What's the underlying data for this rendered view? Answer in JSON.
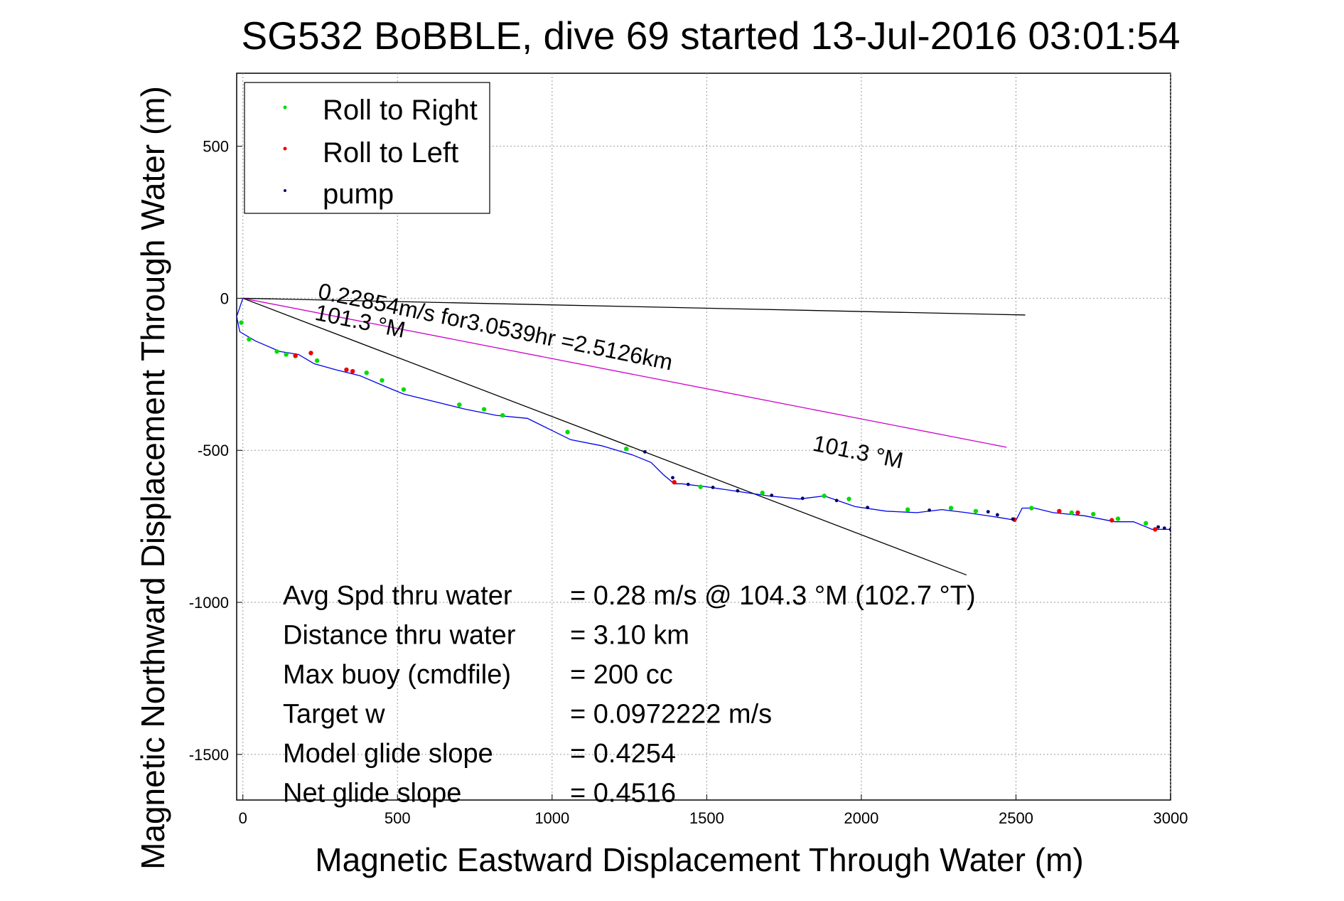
{
  "chart_data": {
    "type": "line",
    "title": "SG532 BoBBLE, dive 69 started 13-Jul-2016 03:01:54",
    "xlabel": "Magnetic Eastward Displacement Through Water (m)",
    "ylabel": "Magnetic Northward Displacement Through Water (m)",
    "xlim": [
      -20,
      3000
    ],
    "ylim": [
      -1650,
      740
    ],
    "xticks": [
      0,
      500,
      1000,
      1500,
      2000,
      2500,
      3000
    ],
    "yticks": [
      500,
      0,
      -500,
      -1000,
      -1500
    ],
    "xtick_labels": [
      "0",
      "500",
      "1000",
      "1500",
      "2000",
      "2500",
      "3000"
    ],
    "ytick_labels": [
      "500",
      "0",
      "-500",
      "-1000",
      "-1500"
    ],
    "grid": true,
    "legend_position": "top-left",
    "legend": [
      {
        "label": "Roll to Right",
        "color": "#00dd00"
      },
      {
        "label": "Roll to Left",
        "color": "#ee0000"
      },
      {
        "label": "pump",
        "color": "#000066"
      }
    ],
    "series": [
      {
        "color": "#0000ee",
        "x": [
          0,
          -20,
          -10,
          40,
          120,
          180,
          230,
          300,
          380,
          460,
          520,
          620,
          720,
          820,
          920,
          1000,
          1060,
          1160,
          1260,
          1320,
          1360,
          1395,
          1420,
          1500,
          1600,
          1700,
          1800,
          1880,
          1980,
          2080,
          2180,
          2260,
          2340,
          2440,
          2500,
          2520,
          2560,
          2620,
          2720,
          2820,
          2880,
          2940,
          3000
        ],
        "y": [
          0,
          -60,
          -110,
          -140,
          -175,
          -185,
          -215,
          -235,
          -255,
          -290,
          -315,
          -340,
          -365,
          -385,
          -395,
          -435,
          -465,
          -485,
          -515,
          -540,
          -580,
          -610,
          -610,
          -620,
          -635,
          -650,
          -660,
          -650,
          -685,
          -700,
          -705,
          -695,
          -705,
          -720,
          -730,
          -690,
          -690,
          -705,
          -715,
          -735,
          -735,
          -760,
          -760
        ]
      }
    ],
    "lines": [
      {
        "color": "#000000",
        "x": [
          0,
          2530
        ],
        "y": [
          0,
          -55
        ]
      },
      {
        "color": "#cc00cc",
        "x": [
          0,
          2470
        ],
        "y": [
          0,
          -490
        ]
      },
      {
        "color": "#000000",
        "x": [
          0,
          2340
        ],
        "y": [
          0,
          -910
        ]
      }
    ],
    "roll_right_points": {
      "x": [
        -5,
        20,
        110,
        140,
        170,
        240,
        400,
        450,
        520,
        700,
        780,
        840,
        1050,
        1240,
        1480,
        1680,
        1880,
        1960,
        2150,
        2290,
        2370,
        2550,
        2680,
        2750,
        2830,
        2920
      ],
      "y": [
        -80,
        -135,
        -175,
        -185,
        -190,
        -205,
        -245,
        -270,
        -300,
        -350,
        -365,
        -385,
        -440,
        -495,
        -620,
        -640,
        -650,
        -660,
        -695,
        -690,
        -700,
        -690,
        -705,
        -710,
        -725,
        -740
      ]
    },
    "roll_left_points": {
      "x": [
        170,
        220,
        335,
        355,
        1395,
        2495,
        2640,
        2700,
        2810,
        2950
      ],
      "y": [
        -188,
        -180,
        -235,
        -240,
        -605,
        -728,
        -700,
        -705,
        -730,
        -760
      ]
    },
    "pump_points": {
      "x": [
        1300,
        1390,
        1440,
        1520,
        1600,
        1710,
        1810,
        1920,
        2020,
        2220,
        2410,
        2440,
        2490,
        2960,
        2980,
        3000
      ],
      "y": [
        -505,
        -590,
        -612,
        -622,
        -633,
        -648,
        -658,
        -665,
        -688,
        -697,
        -702,
        -712,
        -726,
        -752,
        -756,
        -760
      ]
    },
    "annotations": [
      {
        "text": "0.22854m/s for3.0539hr =2.5126km",
        "x": 240,
        "y": 0,
        "rotate": 11.5
      },
      {
        "text": "101.3 °M",
        "x": 230,
        "y": -70,
        "rotate": 11.5
      },
      {
        "text": "101.3 °M",
        "x": 1840,
        "y": -500,
        "rotate": 11.5
      }
    ],
    "stats": [
      {
        "label": "Avg Spd thru water",
        "value": "=  0.28 m/s @ 104.3 °M (102.7 °T)"
      },
      {
        "label": "Distance thru water",
        "value": "=  3.10 km"
      },
      {
        "label": "Max buoy (cmdfile)",
        "value": "= 200 cc"
      },
      {
        "label": "Target w",
        "value": "= 0.0972222 m/s"
      },
      {
        "label": "Model glide slope",
        "value": "= 0.4254"
      },
      {
        "label": "Net glide slope",
        "value": "= 0.4516"
      }
    ],
    "ylabel_tail": "(m)"
  }
}
